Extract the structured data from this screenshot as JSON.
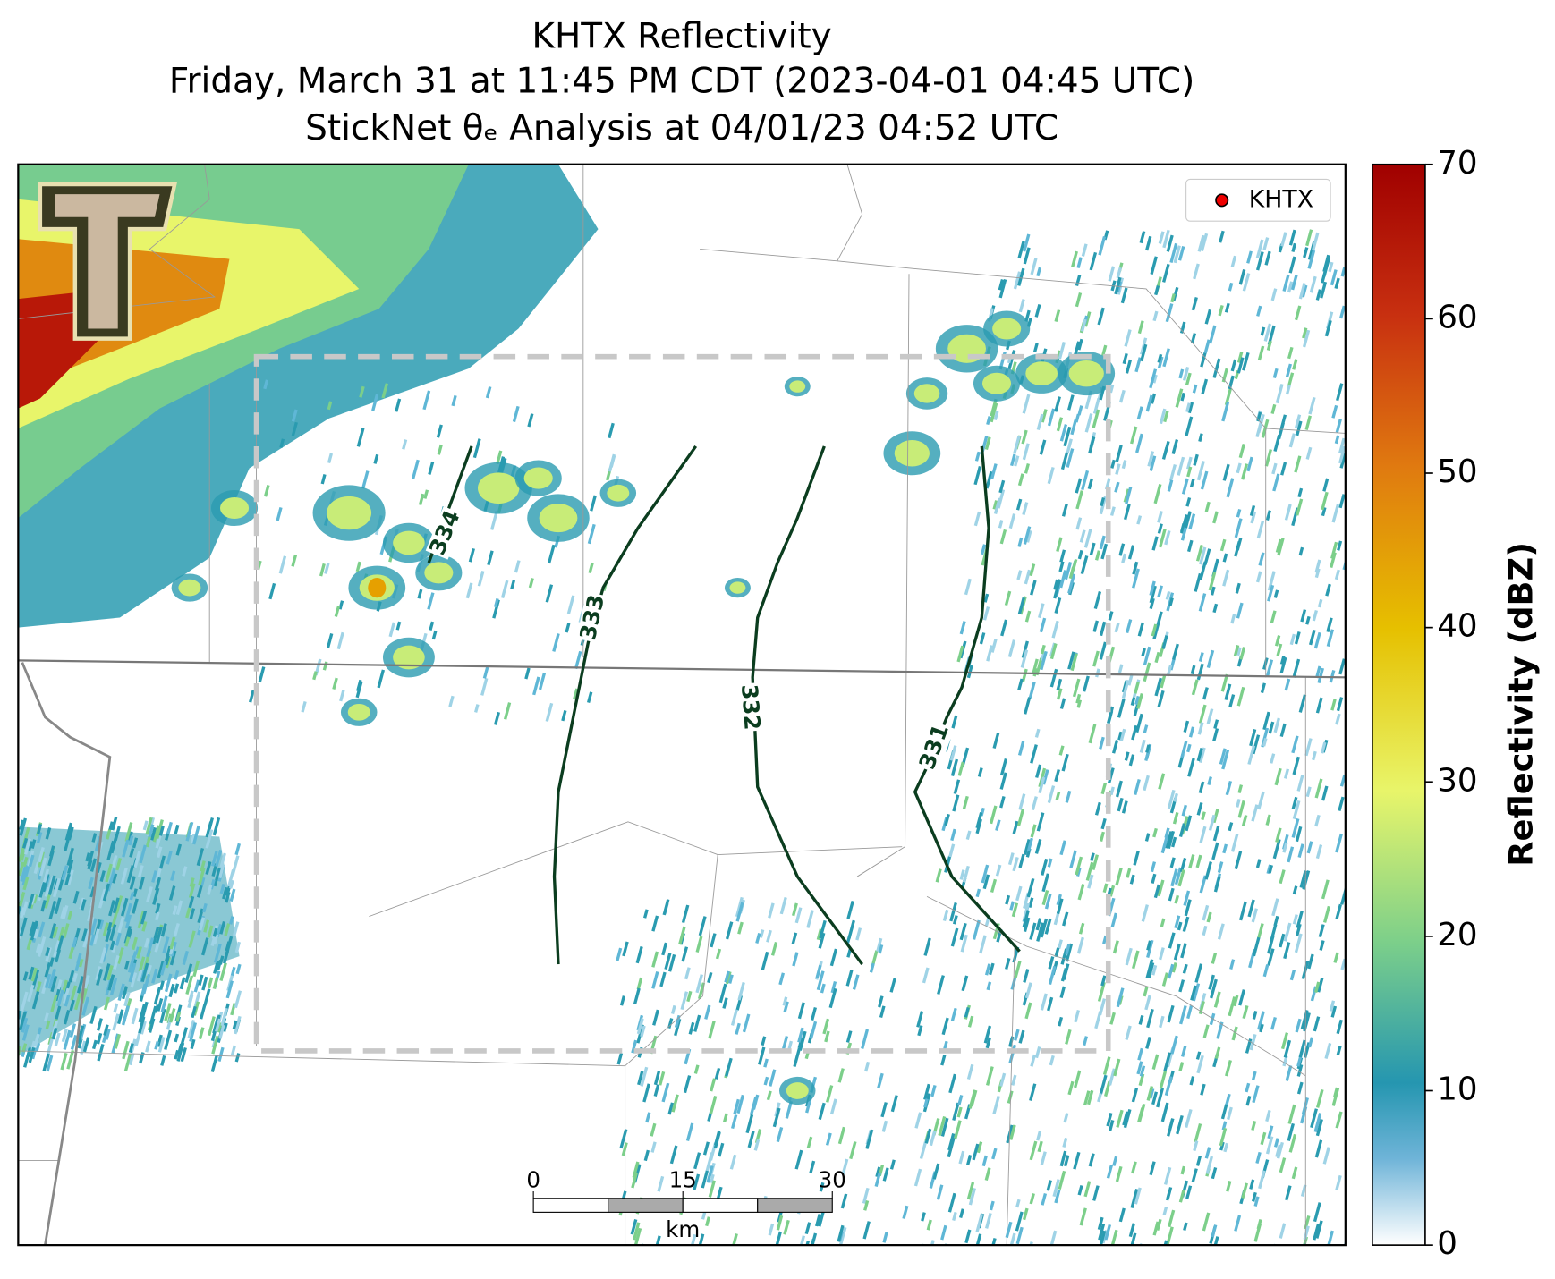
{
  "title": [
    "KHTX Reflectivity",
    "Friday, March 31 at 11:45 PM CDT (2023-04-01 04:45 UTC)",
    "StickNet θₑ Analysis at 04/01/23 04:52 UTC"
  ],
  "legend": {
    "label": "KHTX"
  },
  "colorbar": {
    "label": "Reflectivity (dBZ)",
    "lim": [
      0,
      70
    ],
    "ticks": [
      0,
      10,
      20,
      30,
      40,
      50,
      60,
      70
    ]
  },
  "contours": {
    "levels": [
      334,
      333,
      332,
      331
    ]
  },
  "scale_bar": {
    "ticks": [
      0,
      15,
      30
    ],
    "unit": "km"
  }
}
